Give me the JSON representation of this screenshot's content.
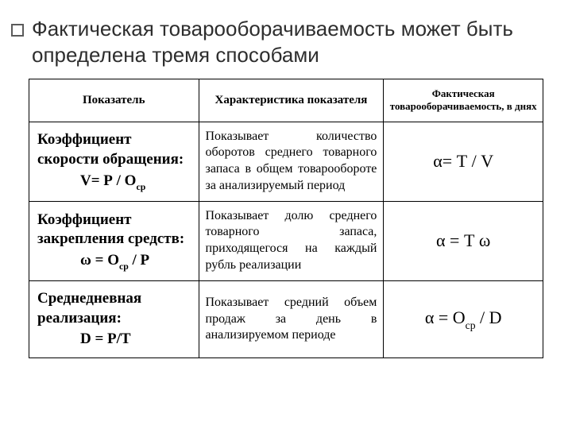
{
  "title": "Фактическая товарооборачиваемость может быть определена тремя способами",
  "table": {
    "columns": [
      "Показатель",
      "Характеристика показателя",
      "Фактическая товарооборачиваемость, в днях"
    ],
    "col_widths_pct": [
      33,
      36,
      31
    ],
    "header_fontsize_pt": 15,
    "header_small_fontsize_pt": 13,
    "indicator_fontsize_pt": 19,
    "desc_fontsize_pt": 16,
    "formula_fontsize_pt": 22,
    "border_color": "#000000",
    "background_color": "#ffffff",
    "text_color": "#000000",
    "rows": [
      {
        "indicator_name": "Коэффициент скорости обращения:",
        "indicator_formula_prefix": "V= Р / О",
        "indicator_formula_sub": "ср",
        "indicator_justify": true,
        "description": "Показывает количество оборотов среднего товарного запаса в общем товарообороте за анализируемый период",
        "formula": {
          "text": "α= Т / V"
        }
      },
      {
        "indicator_name": "Коэффициент закрепления средств:",
        "indicator_formula_prefix": "ω = О",
        "indicator_formula_sub": "ср",
        "indicator_formula_suffix": "  / Р",
        "indicator_justify": false,
        "description": "Показывает долю среднего товарного запаса, приходящегося на каждый рубль реализации",
        "formula": {
          "text": "α = Т ω"
        }
      },
      {
        "indicator_name": "Среднедневная реализация:",
        "indicator_formula_prefix": "D = P/T",
        "indicator_justify": false,
        "description": "Показывает средний объем продаж за день в анализируемом периоде",
        "formula": {
          "prefix": "α = О",
          "sub": "ср",
          "suffix": " / D"
        }
      }
    ]
  },
  "title_fontsize_pt": 26,
  "title_color": "#2e2e2e",
  "bullet_border_color": "#5b5b5b"
}
